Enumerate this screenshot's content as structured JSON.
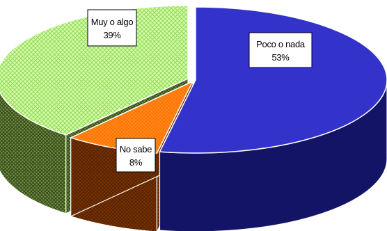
{
  "chart_data": {
    "type": "pie",
    "style": "3d-exploded",
    "slices": [
      {
        "label": "Poco o nada",
        "value": 53,
        "value_label": "53%",
        "color": "#3333CC",
        "side_color": "#141466",
        "pattern": "solid"
      },
      {
        "label": "No sabe",
        "value": 8,
        "value_label": "8%",
        "color": "#FF8C1A",
        "side_color": "#7A3300",
        "pattern": "cross-hatch"
      },
      {
        "label": "Muy o algo",
        "value": 39,
        "value_label": "39%",
        "color": "#CCFF99",
        "side_color": "#5F7A36",
        "pattern": "cross-hatch"
      }
    ],
    "title": "",
    "legend": "none",
    "data_labels": "inside-boxed"
  }
}
